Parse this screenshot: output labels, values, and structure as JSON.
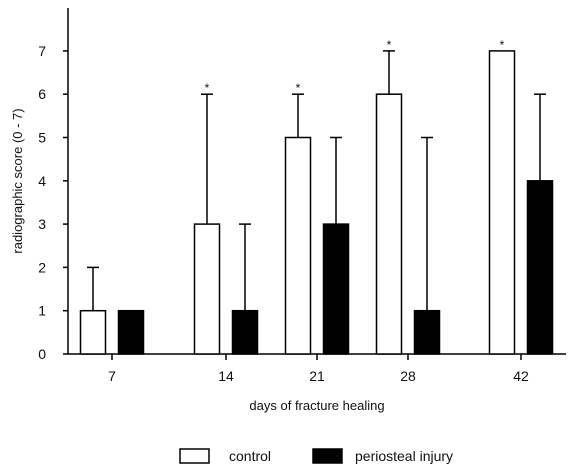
{
  "chart_data": {
    "type": "bar",
    "title": "",
    "xlabel": "days of fracture healing",
    "ylabel": "radiographic score (0 - 7)",
    "categories": [
      "7",
      "14",
      "21",
      "28",
      "42"
    ],
    "ylim": [
      0,
      7.5
    ],
    "yticks": [
      0,
      1,
      2,
      3,
      4,
      5,
      6,
      7
    ],
    "grid": false,
    "legend_position": "bottom",
    "series": [
      {
        "name": "control",
        "fill": "#ffffff",
        "stroke": "#000000",
        "values": [
          1,
          3,
          5,
          6,
          7
        ],
        "error_upper": [
          2,
          6,
          6,
          7,
          7
        ],
        "significance": [
          "",
          "*",
          "*",
          "*",
          "*"
        ]
      },
      {
        "name": "periosteal injury",
        "fill": "#000000",
        "stroke": "#000000",
        "values": [
          1,
          1,
          3,
          1,
          4
        ],
        "error_upper": [
          1,
          3,
          5,
          5,
          6
        ],
        "significance": [
          "",
          "",
          "",
          "",
          ""
        ]
      }
    ]
  }
}
